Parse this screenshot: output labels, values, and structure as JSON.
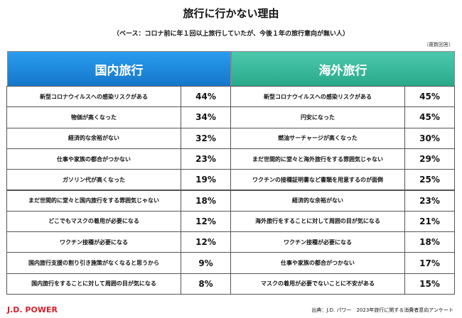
{
  "header": {
    "title": "旅行に行かない理由",
    "subtitle": "（ベース：コロナ前に年１回以上旅行していたが、今後１年の旅行意向が無い人）",
    "note": "（複数回答）"
  },
  "tables": [
    {
      "title": "国内旅行",
      "rows": [
        [
          "新型コロナウイルスへの感染リスクがある",
          "44%"
        ],
        [
          "物価が高くなった",
          "34%"
        ],
        [
          "経済的な余裕がない",
          "32%"
        ],
        [
          "仕事や家族の都合がつかない",
          "23%"
        ],
        [
          "ガソリン代が高くなった",
          "19%"
        ],
        [
          "まだ世間的に堂々と国内旅行をする雰囲気じゃない",
          "18%"
        ],
        [
          "どこでもマスクの着用が必要になる",
          "12%"
        ],
        [
          "ワクチン接種が必要になる",
          "12%"
        ],
        [
          "国内旅行支援の割り引き施策がなくなると思うから",
          "9%"
        ],
        [
          "国内旅行をすることに対して周囲の目が気になる",
          "8%"
        ]
      ]
    },
    {
      "title": "海外旅行",
      "rows": [
        [
          "新型コロナウイルスへの感染リスクがある",
          "45%"
        ],
        [
          "円安になった",
          "45%"
        ],
        [
          "燃油サーチャージが高くなった",
          "30%"
        ],
        [
          "まだ世間的に堂々と海外旅行をする雰囲気じゃない",
          "29%"
        ],
        [
          "ワクチンの接種証明書など書類を用意するのが面倒",
          "25%"
        ],
        [
          "経済的な余裕がない",
          "23%"
        ],
        [
          "海外旅行をすることに対して周囲の目が気になる",
          "21%"
        ],
        [
          "ワクチン接種が必要になる",
          "18%"
        ],
        [
          "仕事や家族の都合がつかない",
          "17%"
        ],
        [
          "マスクの着用が必要でないことに不安がある",
          "15%"
        ]
      ]
    }
  ],
  "footer": {
    "logo": "J.D. POWER",
    "source": "出典：J.D. パワー　2023年旅行に関する消費者意向アンケート"
  }
}
